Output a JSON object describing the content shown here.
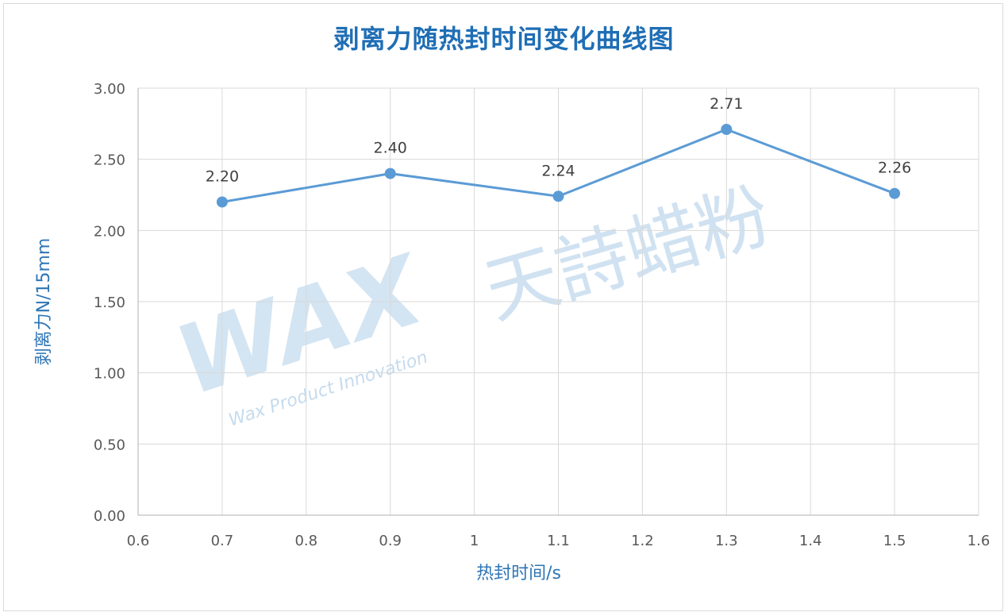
{
  "chart_data": {
    "type": "scatter",
    "title": "剥离力随热封时间变化曲线图",
    "xlabel": "热封时间/s",
    "ylabel": "剥离力N/15mm",
    "xlim": [
      0.6,
      1.6
    ],
    "ylim": [
      0,
      3
    ],
    "x_ticks": [
      "0.6",
      "0.7",
      "0.8",
      "0.9",
      "1",
      "1.1",
      "1.2",
      "1.3",
      "1.4",
      "1.5",
      "1.6"
    ],
    "y_ticks": [
      "0.00",
      "0.50",
      "1.00",
      "1.50",
      "2.00",
      "2.50",
      "3.00"
    ],
    "grid": true,
    "legend": "none",
    "series": [
      {
        "x": [
          0.7,
          0.9,
          1.1,
          1.3,
          1.5
        ],
        "y": [
          2.2,
          2.4,
          2.24,
          2.71,
          2.26
        ],
        "labels": [
          "2.20",
          "2.40",
          "2.24",
          "2.71",
          "2.26"
        ],
        "color": "#5b9bd5",
        "line": true,
        "markers": true
      }
    ]
  },
  "watermark": {
    "logo_text": "WAX",
    "tagline": "Wax Product Innovation",
    "brand": "天詩蜡粉",
    "color": "#c5dbee"
  }
}
